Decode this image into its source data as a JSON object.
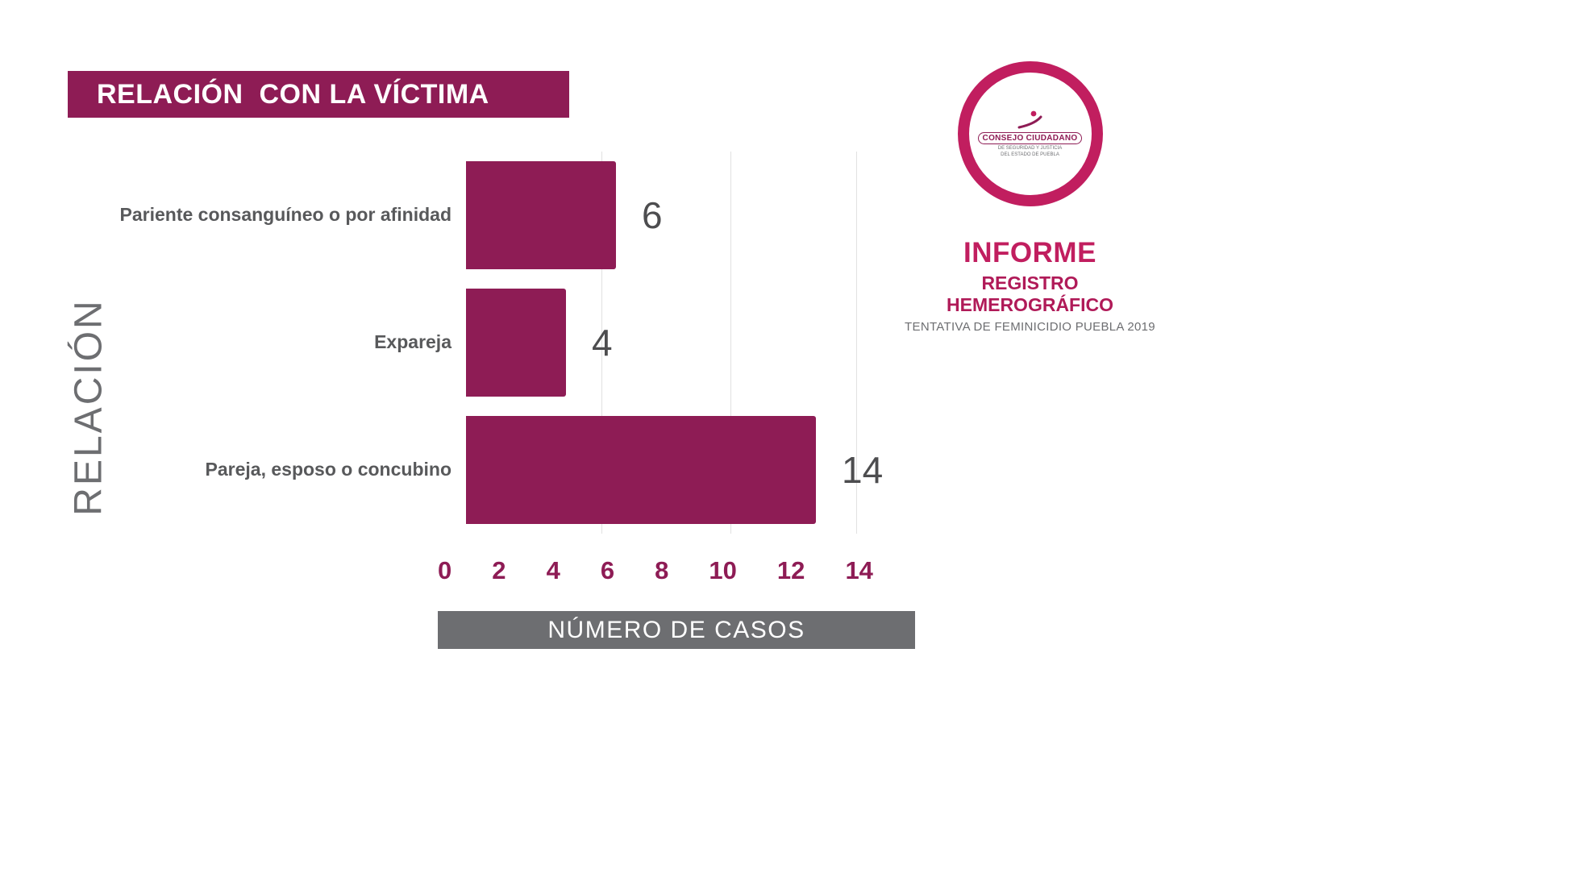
{
  "title_banner": {
    "text": "RELACIÓN  CON LA VÍCTIMA"
  },
  "chart_data": {
    "type": "bar",
    "orientation": "horizontal",
    "title": "RELACIÓN  CON LA VÍCTIMA",
    "categories": [
      "Pariente consanguíneo o por afinidad",
      "Expareja",
      "Pareja, esposo o concubino"
    ],
    "values": [
      6,
      4,
      14
    ],
    "value_labels": [
      "6",
      "4",
      "14"
    ],
    "xlabel": "NÚMERO DE CASOS",
    "ylabel": "RELACIÓN",
    "xlim": [
      0,
      14
    ],
    "xticks": [
      0,
      2,
      4,
      6,
      8,
      10,
      12,
      14
    ],
    "grid": true,
    "legend": false,
    "bar_color": "#8E1C55"
  },
  "logo_panel": {
    "org_line1": "CONSEJO CIUDADANO",
    "org_line2": "DE SEGURIDAD Y JUSTICIA",
    "org_line3": "DEL ESTADO DE PUEBLA",
    "heading": "INFORME",
    "subheading": "REGISTRO HEMEROGRÁFICO",
    "caption": "TENTATIVA DE FEMINICIDIO PUEBLA 2019"
  },
  "colors": {
    "maroon": "#8E1C55",
    "crimson": "#C11E5F",
    "gray_banner": "#6d6e71",
    "text_gray": "#58595b"
  }
}
